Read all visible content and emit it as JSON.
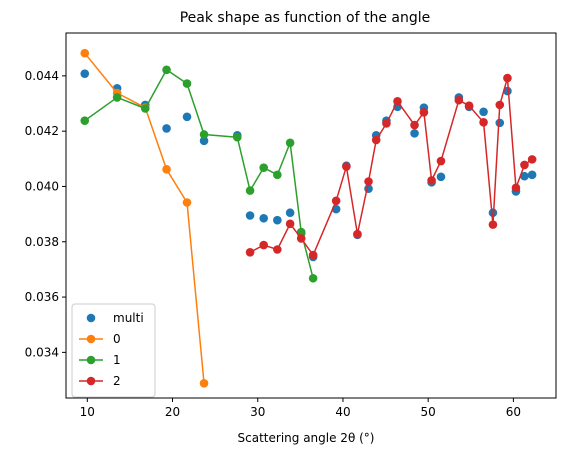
{
  "chart_data": {
    "type": "line",
    "title": "Peak shape as function of the angle",
    "xlabel": "Scattering angle 2θ (°)",
    "ylabel": "",
    "xlim": [
      7.5,
      65
    ],
    "ylim": [
      0.03235,
      0.04555
    ],
    "x_ticks": [
      10,
      20,
      30,
      40,
      50,
      60
    ],
    "y_ticks": [
      0.034,
      0.036,
      0.038,
      0.04,
      0.042,
      0.044
    ],
    "y_tick_labels": [
      "0.034",
      "0.036",
      "0.038",
      "0.040",
      "0.042",
      "0.044"
    ],
    "grid": false,
    "legend_position": "lower-left",
    "series": [
      {
        "name": "multi",
        "style": "markers",
        "color": "#1f77b4",
        "points": [
          [
            9.7,
            0.04408
          ],
          [
            13.5,
            0.04355
          ],
          [
            16.8,
            0.04295
          ],
          [
            19.3,
            0.0421
          ],
          [
            21.7,
            0.04252
          ],
          [
            23.7,
            0.04165
          ],
          [
            27.6,
            0.04185
          ],
          [
            29.1,
            0.03895
          ],
          [
            30.7,
            0.03885
          ],
          [
            32.3,
            0.03878
          ],
          [
            33.8,
            0.03905
          ],
          [
            35.1,
            0.0383
          ],
          [
            36.5,
            0.03745
          ],
          [
            39.2,
            0.03918
          ],
          [
            40.4,
            0.04075
          ],
          [
            41.7,
            0.03825
          ],
          [
            43.0,
            0.03992
          ],
          [
            43.9,
            0.04185
          ],
          [
            45.1,
            0.04238
          ],
          [
            46.4,
            0.04288
          ],
          [
            48.4,
            0.04192
          ],
          [
            49.5,
            0.04285
          ],
          [
            50.4,
            0.04015
          ],
          [
            51.5,
            0.04035
          ],
          [
            53.6,
            0.04322
          ],
          [
            54.8,
            0.04288
          ],
          [
            56.5,
            0.0427
          ],
          [
            57.6,
            0.03905
          ],
          [
            58.4,
            0.0423
          ],
          [
            59.3,
            0.04345
          ],
          [
            60.3,
            0.03982
          ],
          [
            61.3,
            0.04037
          ],
          [
            62.2,
            0.04042
          ]
        ]
      },
      {
        "name": "0",
        "style": "line-markers",
        "color": "#ff7f0e",
        "points": [
          [
            9.7,
            0.04482
          ],
          [
            13.5,
            0.04338
          ],
          [
            16.8,
            0.04285
          ],
          [
            19.3,
            0.04062
          ],
          [
            21.7,
            0.03942
          ],
          [
            23.7,
            0.03288
          ]
        ]
      },
      {
        "name": "1",
        "style": "line-markers",
        "color": "#2ca02c",
        "points": [
          [
            9.7,
            0.04238
          ],
          [
            13.5,
            0.04322
          ],
          [
            16.8,
            0.04282
          ],
          [
            19.3,
            0.04422
          ],
          [
            21.7,
            0.04372
          ],
          [
            23.7,
            0.04188
          ],
          [
            27.6,
            0.04178
          ],
          [
            29.1,
            0.03985
          ],
          [
            30.7,
            0.04068
          ],
          [
            32.3,
            0.04042
          ],
          [
            33.8,
            0.04158
          ],
          [
            35.1,
            0.03835
          ],
          [
            36.5,
            0.03668
          ]
        ]
      },
      {
        "name": "2",
        "style": "line-markers",
        "color": "#d62728",
        "points": [
          [
            29.1,
            0.03762
          ],
          [
            30.7,
            0.03788
          ],
          [
            32.3,
            0.03772
          ],
          [
            33.8,
            0.03865
          ],
          [
            35.1,
            0.03812
          ],
          [
            36.5,
            0.03752
          ],
          [
            39.2,
            0.03948
          ],
          [
            40.4,
            0.04072
          ],
          [
            41.7,
            0.03828
          ],
          [
            43.0,
            0.04018
          ],
          [
            43.9,
            0.04168
          ],
          [
            45.1,
            0.04228
          ],
          [
            46.4,
            0.04308
          ],
          [
            48.4,
            0.04222
          ],
          [
            49.5,
            0.04268
          ],
          [
            50.4,
            0.04022
          ],
          [
            51.5,
            0.04092
          ],
          [
            53.6,
            0.04312
          ],
          [
            54.8,
            0.04292
          ],
          [
            56.5,
            0.04232
          ],
          [
            57.6,
            0.03862
          ],
          [
            58.4,
            0.04295
          ],
          [
            59.3,
            0.04392
          ],
          [
            60.3,
            0.03995
          ],
          [
            61.3,
            0.04078
          ],
          [
            62.2,
            0.04098
          ]
        ]
      }
    ]
  }
}
